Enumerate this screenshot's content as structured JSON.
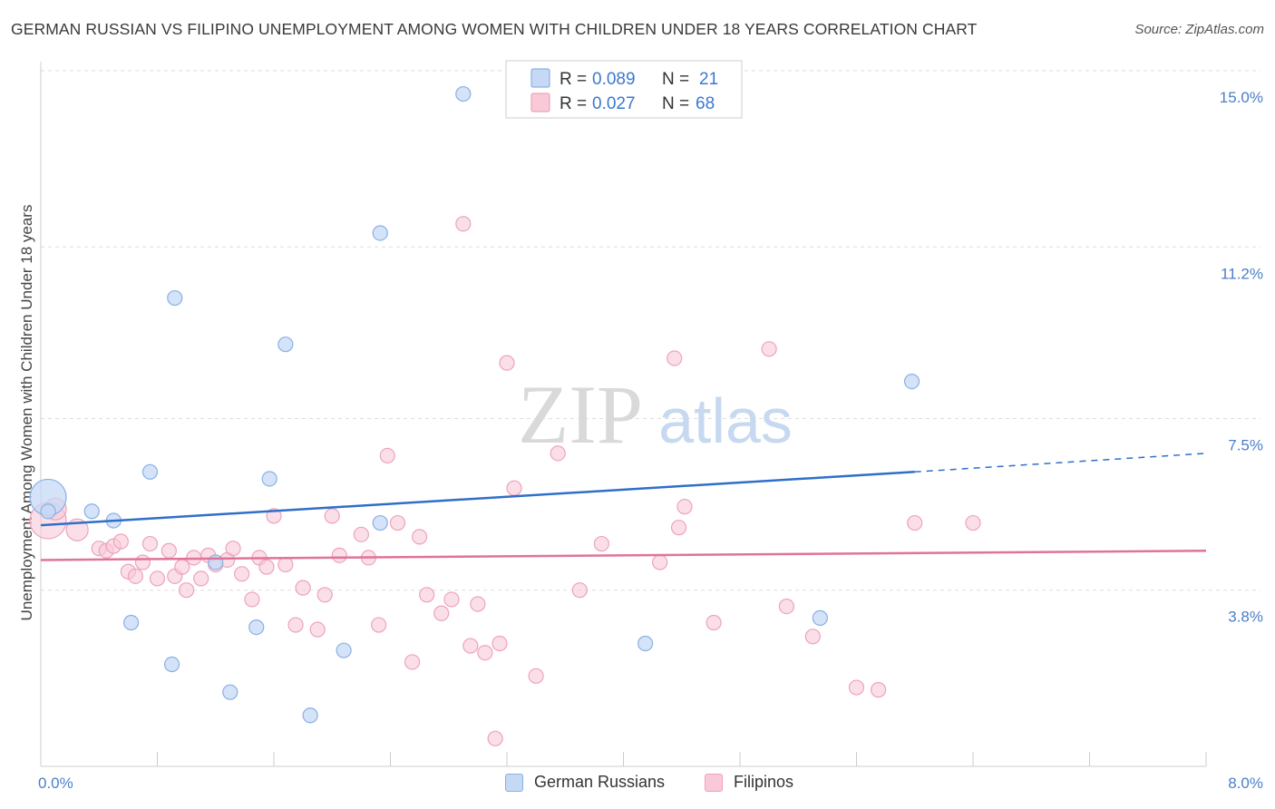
{
  "header": {
    "title": "GERMAN RUSSIAN VS FILIPINO UNEMPLOYMENT AMONG WOMEN WITH CHILDREN UNDER 18 YEARS CORRELATION CHART",
    "source": "Source: ZipAtlas.com"
  },
  "watermark": {
    "zip": "ZIP",
    "atlas": "atlas"
  },
  "colors": {
    "german_fill": "#c5d9f5",
    "german_stroke": "#8ab0e6",
    "german_line": "#2f6fc9",
    "filipino_fill": "#f9c9d8",
    "filipino_stroke": "#eda3bb",
    "filipino_line": "#e07399",
    "grid": "#dddddd",
    "tick_text": "#4a7fc9"
  },
  "legend": {
    "rows": [
      {
        "r_label": "R = ",
        "r_value": "0.089",
        "n_label": "N = ",
        "n_value": "21"
      },
      {
        "r_label": "R = ",
        "r_value": "0.027",
        "n_label": "N = ",
        "n_value": "68"
      }
    ],
    "bottom": [
      "German Russians",
      "Filipinos"
    ]
  },
  "chart_data": {
    "type": "scatter",
    "title": "GERMAN RUSSIAN VS FILIPINO UNEMPLOYMENT AMONG WOMEN WITH CHILDREN UNDER 18 YEARS CORRELATION CHART",
    "xlabel": "",
    "ylabel": "Unemployment Among Women with Children Under 18 years",
    "xlim": [
      0,
      8.0
    ],
    "ylim": [
      0,
      15.0
    ],
    "x_tick_labels": [
      "0.0%",
      "8.0%"
    ],
    "y_ticks": [
      3.8,
      7.5,
      11.2,
      15.0
    ],
    "y_tick_labels": [
      "3.8%",
      "7.5%",
      "11.2%",
      "15.0%"
    ],
    "grid": true,
    "legend_position": "top-center",
    "series": [
      {
        "name": "German Russians",
        "r": 0.089,
        "n": 21,
        "trend": {
          "x0": 0,
          "y0": 5.2,
          "x1": 6.0,
          "y1": 6.35,
          "dash_to_x": 8.0,
          "dash_to_y": 6.75
        },
        "points": [
          [
            0.05,
            5.8
          ],
          [
            0.35,
            5.5
          ],
          [
            0.5,
            5.3
          ],
          [
            0.62,
            3.1
          ],
          [
            0.75,
            6.35
          ],
          [
            0.9,
            2.2
          ],
          [
            0.92,
            10.1
          ],
          [
            1.2,
            4.4
          ],
          [
            1.3,
            1.6
          ],
          [
            1.48,
            3.0
          ],
          [
            1.57,
            6.2
          ],
          [
            1.68,
            9.1
          ],
          [
            1.85,
            1.1
          ],
          [
            2.08,
            2.5
          ],
          [
            2.33,
            11.5
          ],
          [
            2.33,
            5.25
          ],
          [
            2.9,
            14.5
          ],
          [
            4.15,
            2.65
          ],
          [
            5.35,
            3.2
          ],
          [
            5.98,
            8.3
          ],
          [
            0.05,
            5.5
          ]
        ]
      },
      {
        "name": "Filipinos",
        "r": 0.027,
        "n": 68,
        "trend": {
          "x0": 0,
          "y0": 4.45,
          "x1": 8.0,
          "y1": 4.65
        },
        "points": [
          [
            0.05,
            5.3
          ],
          [
            0.1,
            5.55
          ],
          [
            0.25,
            5.1
          ],
          [
            0.4,
            4.7
          ],
          [
            0.45,
            4.65
          ],
          [
            0.5,
            4.75
          ],
          [
            0.55,
            4.85
          ],
          [
            0.6,
            4.2
          ],
          [
            0.65,
            4.1
          ],
          [
            0.7,
            4.4
          ],
          [
            0.75,
            4.8
          ],
          [
            0.8,
            4.05
          ],
          [
            0.88,
            4.65
          ],
          [
            0.92,
            4.1
          ],
          [
            0.97,
            4.3
          ],
          [
            1.0,
            3.8
          ],
          [
            1.05,
            4.5
          ],
          [
            1.1,
            4.05
          ],
          [
            1.15,
            4.55
          ],
          [
            1.2,
            4.35
          ],
          [
            1.28,
            4.45
          ],
          [
            1.32,
            4.7
          ],
          [
            1.38,
            4.15
          ],
          [
            1.45,
            3.6
          ],
          [
            1.5,
            4.5
          ],
          [
            1.55,
            4.3
          ],
          [
            1.6,
            5.4
          ],
          [
            1.68,
            4.35
          ],
          [
            1.75,
            3.05
          ],
          [
            1.8,
            3.85
          ],
          [
            1.9,
            2.95
          ],
          [
            1.95,
            3.7
          ],
          [
            2.0,
            5.4
          ],
          [
            2.05,
            4.55
          ],
          [
            2.2,
            5.0
          ],
          [
            2.25,
            4.5
          ],
          [
            2.32,
            3.05
          ],
          [
            2.38,
            6.7
          ],
          [
            2.45,
            5.25
          ],
          [
            2.55,
            2.25
          ],
          [
            2.6,
            4.95
          ],
          [
            2.65,
            3.7
          ],
          [
            2.75,
            3.3
          ],
          [
            2.82,
            3.6
          ],
          [
            2.95,
            2.6
          ],
          [
            3.0,
            3.5
          ],
          [
            3.05,
            2.45
          ],
          [
            3.12,
            0.6
          ],
          [
            3.15,
            2.65
          ],
          [
            3.2,
            8.7
          ],
          [
            3.25,
            6.0
          ],
          [
            3.4,
            1.95
          ],
          [
            3.55,
            6.75
          ],
          [
            3.7,
            3.8
          ],
          [
            3.85,
            4.8
          ],
          [
            4.25,
            4.4
          ],
          [
            4.35,
            8.8
          ],
          [
            4.38,
            5.15
          ],
          [
            4.42,
            5.6
          ],
          [
            4.62,
            3.1
          ],
          [
            5.0,
            9.0
          ],
          [
            5.12,
            3.45
          ],
          [
            5.3,
            2.8
          ],
          [
            5.6,
            1.7
          ],
          [
            5.75,
            1.65
          ],
          [
            6.0,
            5.25
          ],
          [
            6.4,
            5.25
          ],
          [
            2.9,
            11.7
          ]
        ]
      }
    ]
  }
}
